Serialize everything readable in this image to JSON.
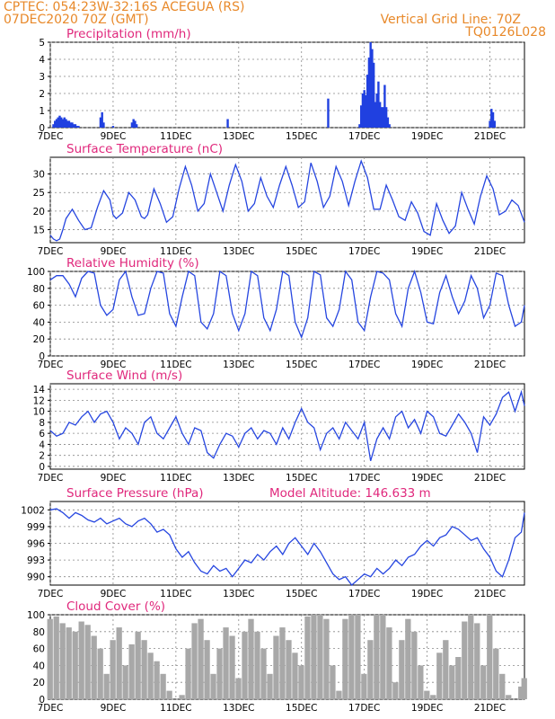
{
  "header": {
    "line1": "CPTEC:   054:23W-32:16S   ACEGUA (RS)",
    "line2": "07DEC2020 70Z (GMT)",
    "grid_note": "Vertical Grid Line: 70Z",
    "model_code": "TQ0126L028"
  },
  "colors": {
    "header": "#e8892a",
    "title": "#e0287c",
    "line": "#2646e0",
    "bar": "#2040e0",
    "cloud": "#a8a8a8",
    "grid": "#888888"
  },
  "x_ticks": [
    "7DEC",
    "9DEC",
    "11DEC",
    "13DEC",
    "15DEC",
    "17DEC",
    "19DEC",
    "21DEC"
  ],
  "x_tick_days": [
    7,
    9,
    11,
    13,
    15,
    17,
    19,
    21
  ],
  "chart_data": [
    {
      "id": "precip",
      "type": "bar",
      "title": "Precipitation (mm/h)",
      "xlim": [
        7,
        22.1
      ],
      "ylim": [
        0,
        5
      ],
      "yticks": [
        0,
        1,
        2,
        3,
        4,
        5
      ],
      "x": [
        7.1,
        7.15,
        7.2,
        7.25,
        7.3,
        7.35,
        7.4,
        7.45,
        7.5,
        7.55,
        7.6,
        7.65,
        7.7,
        7.75,
        7.8,
        7.85,
        7.9,
        8.6,
        8.65,
        8.7,
        9.0,
        9.6,
        9.65,
        9.7,
        9.75,
        12.65,
        15.85,
        16.85,
        16.9,
        16.95,
        17.0,
        17.05,
        17.1,
        17.15,
        17.2,
        17.25,
        17.3,
        17.35,
        17.4,
        17.45,
        17.5,
        17.55,
        17.6,
        17.65,
        17.7,
        17.75,
        17.8,
        21.0,
        21.05,
        21.1,
        21.15
      ],
      "values": [
        0.2,
        0.4,
        0.5,
        0.6,
        0.7,
        0.6,
        0.5,
        0.6,
        0.5,
        0.4,
        0.4,
        0.3,
        0.3,
        0.2,
        0.2,
        0.1,
        0.1,
        0.6,
        0.9,
        0.3,
        0.1,
        0.3,
        0.5,
        0.4,
        0.2,
        0.5,
        1.7,
        0.2,
        1.3,
        2.0,
        2.2,
        1.9,
        3.1,
        4.1,
        5.0,
        4.6,
        3.8,
        1.5,
        2.0,
        2.7,
        1.5,
        1.2,
        1.2,
        2.5,
        1.2,
        0.6,
        0.2,
        0.4,
        1.1,
        0.9,
        0.4
      ]
    },
    {
      "id": "temp",
      "type": "line",
      "title": "Surface Temperature (nC)",
      "xlim": [
        7,
        22.1
      ],
      "ylim": [
        11.5,
        34.5
      ],
      "yticks": [
        15,
        20,
        25,
        30
      ],
      "x": [
        7.0,
        7.1,
        7.2,
        7.3,
        7.4,
        7.5,
        7.7,
        7.9,
        8.1,
        8.3,
        8.5,
        8.7,
        8.9,
        9.0,
        9.1,
        9.3,
        9.5,
        9.7,
        9.9,
        10.0,
        10.1,
        10.3,
        10.5,
        10.7,
        10.9,
        11.1,
        11.3,
        11.5,
        11.7,
        11.9,
        12.1,
        12.3,
        12.5,
        12.7,
        12.9,
        13.1,
        13.3,
        13.5,
        13.7,
        13.9,
        14.1,
        14.3,
        14.5,
        14.7,
        14.9,
        15.1,
        15.3,
        15.5,
        15.7,
        15.9,
        16.1,
        16.3,
        16.5,
        16.7,
        16.9,
        17.1,
        17.3,
        17.5,
        17.7,
        17.9,
        18.1,
        18.3,
        18.5,
        18.7,
        18.9,
        19.1,
        19.3,
        19.5,
        19.7,
        19.9,
        20.1,
        20.3,
        20.5,
        20.7,
        20.9,
        21.1,
        21.3,
        21.5,
        21.7,
        21.9,
        22.1
      ],
      "values": [
        13.5,
        12.5,
        12.0,
        12.5,
        15.0,
        18.0,
        20.5,
        17.5,
        15.0,
        15.5,
        21.0,
        25.5,
        23.0,
        19.0,
        18.0,
        19.5,
        25.0,
        23.0,
        18.5,
        18.0,
        19.0,
        26.0,
        22.0,
        17.0,
        18.5,
        26.0,
        32.0,
        27.0,
        20.0,
        22.0,
        30.0,
        25.0,
        20.0,
        27.0,
        32.5,
        28.0,
        20.0,
        22.0,
        29.0,
        24.0,
        21.0,
        27.0,
        32.0,
        27.0,
        21.0,
        22.5,
        33.0,
        28.0,
        21.0,
        24.0,
        32.0,
        28.0,
        21.5,
        28.0,
        33.5,
        29.0,
        20.5,
        20.5,
        27.0,
        23.0,
        18.5,
        17.5,
        22.5,
        19.5,
        14.5,
        13.5,
        22.0,
        17.5,
        14.0,
        16.0,
        25.0,
        20.5,
        16.5,
        24.0,
        29.5,
        26.0,
        19.0,
        20.0,
        23.0,
        21.5,
        17.0
      ]
    },
    {
      "id": "rh",
      "type": "line",
      "title": "Relative Humidity (%)",
      "xlim": [
        7,
        22.1
      ],
      "ylim": [
        0,
        100
      ],
      "yticks": [
        0,
        20,
        40,
        60,
        80,
        100
      ],
      "x": [
        7.0,
        7.2,
        7.4,
        7.6,
        7.8,
        8.0,
        8.2,
        8.4,
        8.6,
        8.8,
        9.0,
        9.2,
        9.4,
        9.6,
        9.8,
        10.0,
        10.2,
        10.4,
        10.6,
        10.8,
        11.0,
        11.2,
        11.4,
        11.6,
        11.8,
        12.0,
        12.2,
        12.4,
        12.6,
        12.8,
        13.0,
        13.2,
        13.4,
        13.6,
        13.8,
        14.0,
        14.2,
        14.4,
        14.6,
        14.8,
        15.0,
        15.2,
        15.4,
        15.6,
        15.8,
        16.0,
        16.2,
        16.4,
        16.6,
        16.8,
        17.0,
        17.2,
        17.4,
        17.6,
        17.8,
        18.0,
        18.2,
        18.4,
        18.6,
        18.8,
        19.0,
        19.2,
        19.4,
        19.6,
        19.8,
        20.0,
        20.2,
        20.4,
        20.6,
        20.8,
        21.0,
        21.2,
        21.4,
        21.6,
        21.8,
        22.0,
        22.1
      ],
      "values": [
        90,
        95,
        95,
        85,
        70,
        92,
        100,
        98,
        60,
        48,
        55,
        90,
        100,
        70,
        48,
        50,
        80,
        100,
        98,
        50,
        35,
        70,
        100,
        95,
        40,
        32,
        50,
        100,
        95,
        50,
        30,
        50,
        100,
        95,
        45,
        30,
        55,
        100,
        95,
        40,
        22,
        45,
        100,
        96,
        45,
        35,
        55,
        100,
        90,
        40,
        30,
        70,
        100,
        98,
        90,
        50,
        35,
        80,
        100,
        75,
        40,
        38,
        75,
        95,
        70,
        50,
        65,
        95,
        80,
        45,
        60,
        98,
        95,
        60,
        35,
        40,
        60
      ]
    },
    {
      "id": "wind",
      "type": "line",
      "title": "Surface Wind (m/s)",
      "xlim": [
        7,
        22.1
      ],
      "ylim": [
        -0.5,
        15
      ],
      "yticks": [
        0,
        2,
        4,
        6,
        8,
        10,
        12,
        14
      ],
      "x": [
        7.0,
        7.2,
        7.4,
        7.6,
        7.8,
        8.0,
        8.2,
        8.4,
        8.6,
        8.8,
        9.0,
        9.2,
        9.4,
        9.6,
        9.8,
        10.0,
        10.2,
        10.4,
        10.6,
        10.8,
        11.0,
        11.2,
        11.4,
        11.6,
        11.8,
        12.0,
        12.2,
        12.4,
        12.6,
        12.8,
        13.0,
        13.2,
        13.4,
        13.6,
        13.8,
        14.0,
        14.2,
        14.4,
        14.6,
        14.8,
        15.0,
        15.2,
        15.4,
        15.6,
        15.8,
        16.0,
        16.2,
        16.4,
        16.6,
        16.8,
        17.0,
        17.2,
        17.4,
        17.6,
        17.8,
        18.0,
        18.2,
        18.4,
        18.6,
        18.8,
        19.0,
        19.2,
        19.4,
        19.6,
        19.8,
        20.0,
        20.2,
        20.4,
        20.6,
        20.8,
        21.0,
        21.2,
        21.4,
        21.6,
        21.8,
        22.0,
        22.1
      ],
      "values": [
        6.5,
        5.5,
        6.0,
        8.0,
        7.5,
        9.0,
        10.0,
        8.0,
        9.5,
        10.0,
        8.0,
        5.0,
        7.0,
        6.0,
        4.0,
        8.0,
        9.0,
        6.0,
        5.0,
        7.0,
        9.0,
        6.0,
        4.0,
        7.0,
        6.5,
        2.5,
        1.5,
        4.0,
        6.0,
        5.5,
        3.5,
        6.0,
        7.0,
        5.0,
        6.5,
        6.0,
        4.0,
        7.0,
        5.0,
        8.0,
        10.5,
        8.0,
        7.0,
        3.0,
        6.0,
        7.0,
        5.0,
        8.0,
        6.5,
        5.0,
        8.0,
        1.0,
        5.0,
        7.0,
        5.0,
        9.0,
        10.0,
        7.0,
        8.5,
        6.0,
        10.0,
        9.0,
        6.0,
        5.5,
        7.5,
        9.5,
        8.0,
        6.0,
        2.5,
        9.0,
        7.5,
        9.5,
        12.5,
        13.5,
        10.0,
        13.5,
        11.0
      ]
    },
    {
      "id": "pres",
      "type": "line",
      "title": "Surface Pressure (hPa)",
      "annotation": "Model Altitude: 146.633 m",
      "xlim": [
        7,
        22.1
      ],
      "ylim": [
        988.5,
        1003.5
      ],
      "yticks": [
        990,
        993,
        996,
        999,
        1002
      ],
      "x": [
        7.0,
        7.2,
        7.4,
        7.6,
        7.8,
        8.0,
        8.2,
        8.4,
        8.6,
        8.8,
        9.0,
        9.2,
        9.4,
        9.6,
        9.8,
        10.0,
        10.2,
        10.4,
        10.6,
        10.8,
        11.0,
        11.2,
        11.4,
        11.6,
        11.8,
        12.0,
        12.2,
        12.4,
        12.6,
        12.8,
        13.0,
        13.2,
        13.4,
        13.6,
        13.8,
        14.0,
        14.2,
        14.4,
        14.6,
        14.8,
        15.0,
        15.2,
        15.4,
        15.6,
        15.8,
        16.0,
        16.2,
        16.4,
        16.6,
        16.8,
        17.0,
        17.2,
        17.4,
        17.6,
        17.8,
        18.0,
        18.2,
        18.4,
        18.6,
        18.8,
        19.0,
        19.2,
        19.4,
        19.6,
        19.8,
        20.0,
        20.2,
        20.4,
        20.6,
        20.8,
        21.0,
        21.2,
        21.4,
        21.6,
        21.8,
        22.0,
        22.1
      ],
      "values": [
        1002.0,
        1002.2,
        1001.5,
        1000.5,
        1001.5,
        1001.0,
        1000.2,
        999.8,
        1000.5,
        999.5,
        1000.0,
        1000.5,
        999.5,
        999.0,
        1000.0,
        1000.5,
        999.5,
        998.0,
        998.5,
        997.5,
        995.0,
        993.5,
        994.5,
        992.5,
        991.0,
        990.5,
        992.0,
        991.0,
        991.5,
        990.0,
        991.5,
        993.0,
        992.5,
        994.0,
        993.0,
        994.5,
        995.5,
        994.0,
        996.0,
        997.0,
        995.5,
        994.0,
        996.0,
        994.5,
        992.5,
        990.5,
        989.5,
        990.0,
        988.5,
        989.5,
        990.5,
        990.0,
        991.5,
        990.5,
        991.5,
        993.0,
        992.0,
        993.5,
        994.0,
        995.5,
        996.5,
        995.5,
        997.0,
        997.5,
        999.0,
        998.5,
        997.5,
        996.5,
        997.0,
        995.0,
        993.5,
        991.0,
        990.0,
        993.0,
        997.0,
        998.0,
        1001.5
      ]
    },
    {
      "id": "cloud",
      "type": "area",
      "title": "Cloud Cover (%)",
      "xlim": [
        7,
        22.1
      ],
      "ylim": [
        0,
        100
      ],
      "yticks": [
        0,
        20,
        40,
        60,
        80,
        100
      ],
      "x": [
        7.0,
        7.2,
        7.4,
        7.6,
        7.8,
        8.0,
        8.2,
        8.4,
        8.6,
        8.8,
        9.0,
        9.2,
        9.4,
        9.6,
        9.8,
        10.0,
        10.2,
        10.4,
        10.6,
        10.8,
        11.0,
        11.2,
        11.4,
        11.6,
        11.8,
        12.0,
        12.2,
        12.4,
        12.6,
        12.8,
        13.0,
        13.2,
        13.4,
        13.6,
        13.8,
        14.0,
        14.2,
        14.4,
        14.6,
        14.8,
        15.0,
        15.2,
        15.4,
        15.6,
        15.8,
        16.0,
        16.2,
        16.4,
        16.6,
        16.8,
        17.0,
        17.2,
        17.4,
        17.6,
        17.8,
        18.0,
        18.2,
        18.4,
        18.6,
        18.8,
        19.0,
        19.2,
        19.4,
        19.6,
        19.8,
        20.0,
        20.2,
        20.4,
        20.6,
        20.8,
        21.0,
        21.2,
        21.4,
        21.6,
        21.8,
        22.0,
        22.1
      ],
      "values": [
        95,
        98,
        90,
        85,
        80,
        92,
        88,
        75,
        60,
        30,
        70,
        85,
        40,
        65,
        80,
        70,
        55,
        45,
        30,
        10,
        0,
        5,
        60,
        90,
        95,
        70,
        30,
        60,
        85,
        75,
        25,
        80,
        95,
        80,
        60,
        30,
        75,
        85,
        70,
        55,
        40,
        98,
        100,
        100,
        95,
        40,
        10,
        95,
        100,
        100,
        30,
        70,
        100,
        100,
        85,
        20,
        70,
        95,
        80,
        40,
        10,
        5,
        55,
        70,
        40,
        50,
        92,
        100,
        90,
        40,
        100,
        60,
        30,
        5,
        0,
        15,
        25
      ]
    }
  ]
}
